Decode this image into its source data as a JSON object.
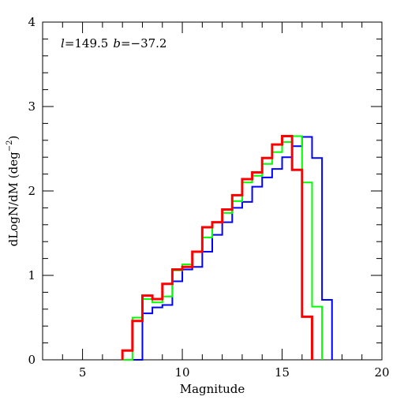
{
  "chart_data": {
    "type": "line",
    "step": true,
    "xlabel": "Magnitude",
    "ylabel": "dLogN/dM (deg",
    "ylabel_sup": "−2",
    "ylabel_close": ")",
    "annotation": {
      "l_symbol": "l",
      "l_value": "=149.5",
      "b_symbol": "b",
      "b_value": "=−37.2"
    },
    "xlim": [
      3,
      20
    ],
    "ylim": [
      0,
      4
    ],
    "x_ticks": [
      5,
      10,
      15,
      20
    ],
    "y_ticks": [
      0,
      1,
      2,
      3,
      4
    ],
    "x_minor_step": 1,
    "y_minor_step": 0.2,
    "grid": false,
    "series": [
      {
        "color": "#0000ff",
        "width": 2,
        "edges": [
          7.5,
          8.0,
          8.5,
          9.0,
          9.5,
          10.0,
          10.5,
          11.0,
          11.5,
          12.0,
          12.5,
          13.0,
          13.5,
          14.0,
          14.5,
          15.0,
          15.5,
          16.0,
          16.5,
          17.0,
          17.5
        ],
        "values": [
          0.0,
          0.55,
          0.62,
          0.65,
          0.93,
          1.07,
          1.1,
          1.28,
          1.48,
          1.63,
          1.8,
          1.87,
          2.05,
          2.16,
          2.26,
          2.4,
          2.53,
          2.64,
          2.39,
          0.71
        ]
      },
      {
        "color": "#00ff00",
        "width": 2,
        "edges": [
          7.0,
          7.5,
          8.0,
          8.5,
          9.0,
          9.5,
          10.0,
          10.5,
          11.0,
          11.5,
          12.0,
          12.5,
          13.0,
          13.5,
          14.0,
          14.5,
          15.0,
          15.5,
          16.0,
          16.5,
          17.0
        ],
        "values": [
          0.0,
          0.5,
          0.72,
          0.68,
          0.75,
          1.06,
          1.13,
          1.28,
          1.45,
          1.63,
          1.74,
          1.88,
          2.1,
          2.18,
          2.32,
          2.46,
          2.58,
          2.65,
          2.1,
          0.63
        ]
      },
      {
        "color": "#ff0000",
        "width": 3,
        "edges": [
          7.0,
          7.5,
          8.0,
          8.5,
          9.0,
          9.5,
          10.0,
          10.5,
          11.0,
          11.5,
          12.0,
          12.5,
          13.0,
          13.5,
          14.0,
          14.5,
          15.0,
          15.5,
          16.0,
          16.5
        ],
        "values": [
          0.11,
          0.46,
          0.76,
          0.72,
          0.9,
          1.07,
          1.1,
          1.28,
          1.57,
          1.63,
          1.78,
          1.95,
          2.14,
          2.22,
          2.39,
          2.55,
          2.65,
          2.25,
          0.51
        ]
      }
    ]
  }
}
